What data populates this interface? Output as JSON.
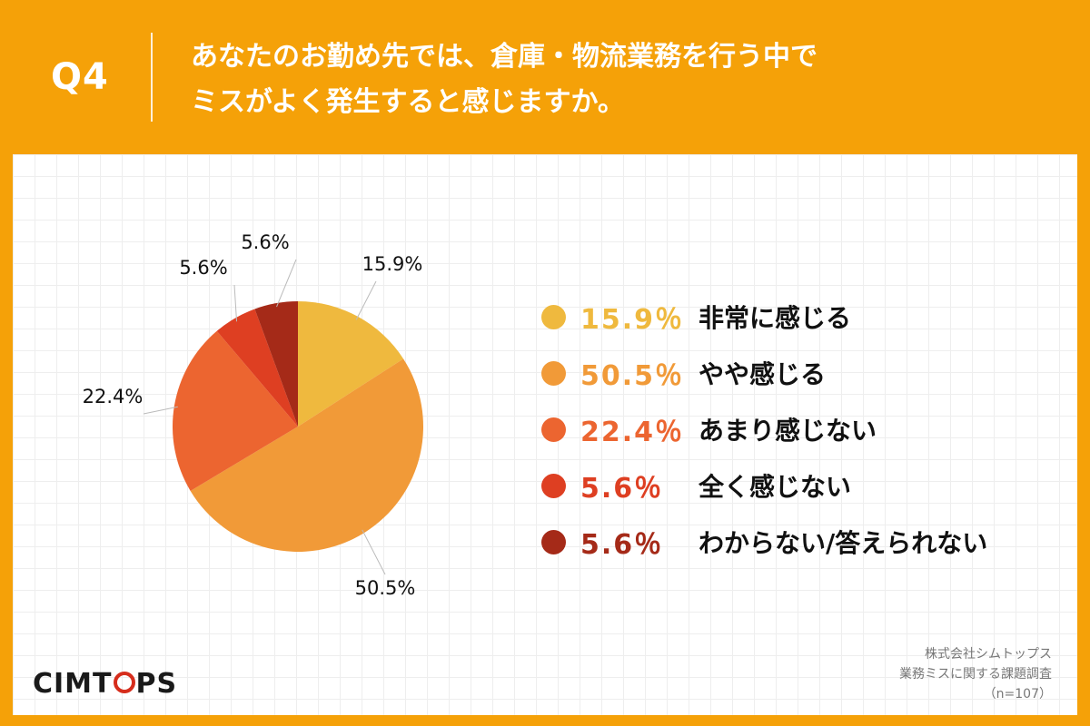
{
  "header": {
    "question_number": "Q4",
    "title_line1": "あなたのお勤め先では、倉庫・物流業務を行う中で",
    "title_line2": "ミスがよく発生すると感じますか。"
  },
  "chart_data": {
    "type": "pie",
    "start_angle_deg": 0,
    "direction": "clockwise",
    "slices": [
      {
        "label": "非常に感じる",
        "value": 15.9,
        "value_label": "15.9%",
        "legend_value": "15.9％",
        "color": "#EFB93E"
      },
      {
        "label": "やや感じる",
        "value": 50.5,
        "value_label": "50.5%",
        "legend_value": "50.5％",
        "color": "#F19A38"
      },
      {
        "label": "あまり感じない",
        "value": 22.4,
        "value_label": "22.4%",
        "legend_value": "22.4％",
        "color": "#EC6530"
      },
      {
        "label": "全く感じない",
        "value": 5.6,
        "value_label": "5.6%",
        "legend_value": "5.6％",
        "color": "#DE3F22"
      },
      {
        "label": "わからない/答えられない",
        "value": 5.6,
        "value_label": "5.6%",
        "legend_value": "5.6％",
        "color": "#A52A18"
      }
    ],
    "legend_position": "right"
  },
  "branding": {
    "logo_pre": "CIMT",
    "logo_post": "PS"
  },
  "source": {
    "line1": "株式会社シムトップス",
    "line2": "業務ミスに関する課題調査",
    "line3": "（n=107）"
  }
}
